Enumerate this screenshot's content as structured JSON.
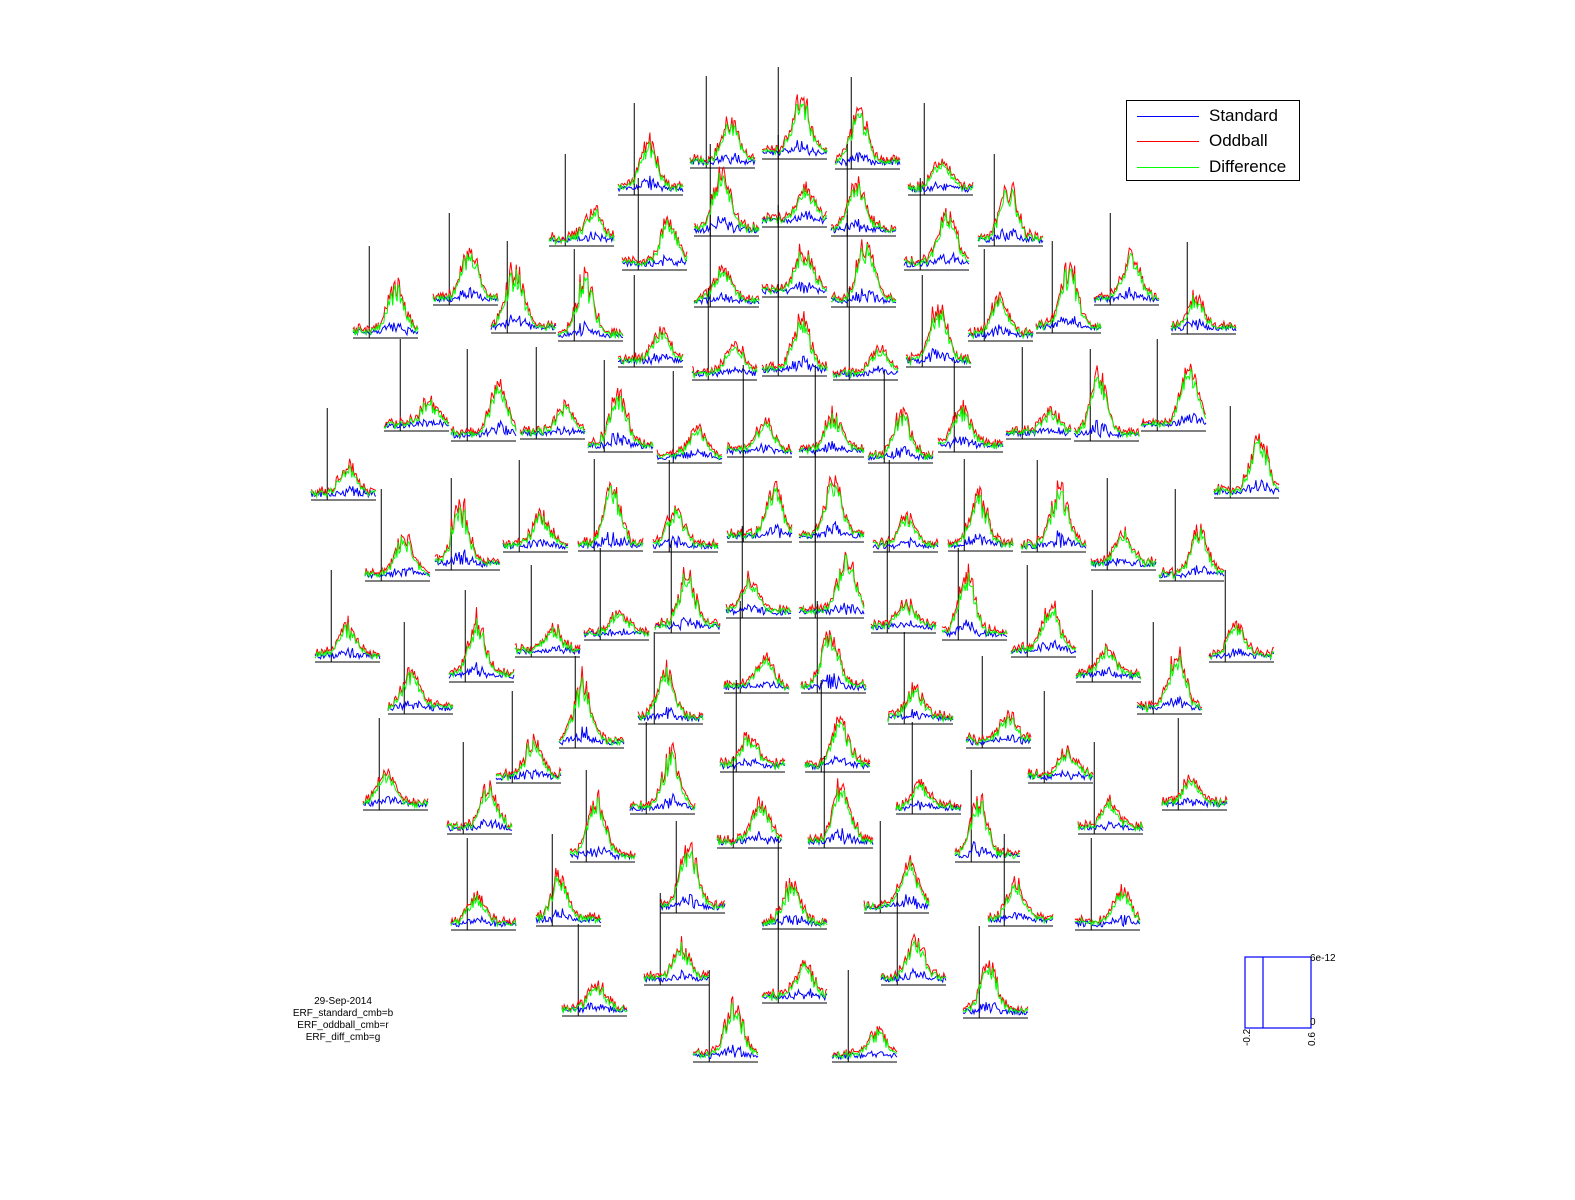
{
  "legend": [
    {
      "label": "Standard",
      "color": "#0000ff"
    },
    {
      "label": "Oddball",
      "color": "#ff0000"
    },
    {
      "label": "Difference",
      "color": "#00ff00"
    }
  ],
  "comment": {
    "date": "29-Sep-2014",
    "line1": "ERF_standard_cmb=b",
    "line2": "ERF_oddball_cmb=r",
    "line3": "ERF_diff_cmb=g"
  },
  "scale": {
    "xmin_label": "-0.2",
    "xmax_label": "0.6",
    "ymin_label": "0",
    "ymax_label": "6e-12"
  },
  "chart_data": {
    "type": "line",
    "layout": "topographic multiplot of combined-planar ERF channels",
    "xlim": [
      -0.2,
      0.6
    ],
    "ylim": [
      0,
      6e-12
    ],
    "series": [
      {
        "name": "Standard",
        "color": "#0000ff"
      },
      {
        "name": "Oddball",
        "color": "#ff0000"
      },
      {
        "name": "Difference",
        "color": "#00ff00"
      }
    ],
    "channel_count": 102
  }
}
